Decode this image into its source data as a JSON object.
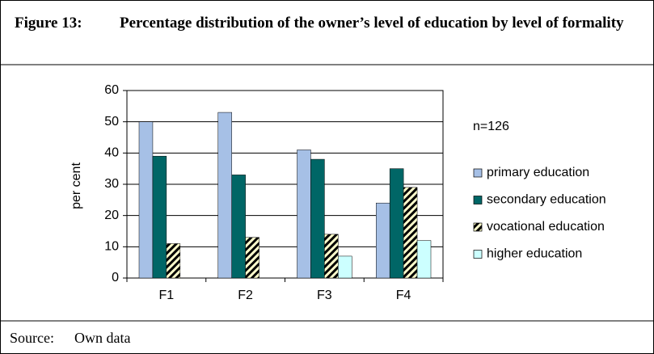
{
  "figure_label": "Figure 13:",
  "source_label": "Source:",
  "source": "Own data",
  "chart_data": {
    "type": "bar",
    "title": "Percentage distribution of the owner’s level of education by level of formality",
    "annotation": "n=126",
    "y_label": "per cent",
    "categories": [
      "F1",
      "F2",
      "F3",
      "F4"
    ],
    "series": [
      {
        "name": "primary education",
        "color": "#a6c0e6",
        "values": [
          50,
          53,
          41,
          24
        ]
      },
      {
        "name": "secondary education",
        "color": "#006666",
        "values": [
          39,
          33,
          38,
          35
        ]
      },
      {
        "name": "vocational education",
        "color": "#ffffcc",
        "pattern": "hatch",
        "values": [
          11,
          13,
          14,
          29
        ]
      },
      {
        "name": "higher education",
        "color": "#ccffff",
        "values": [
          0,
          0,
          7,
          12
        ]
      }
    ],
    "ylim": [
      0,
      60
    ],
    "yticks": [
      0,
      10,
      20,
      30,
      40,
      50,
      60
    ],
    "grid": true,
    "legend": "right"
  }
}
